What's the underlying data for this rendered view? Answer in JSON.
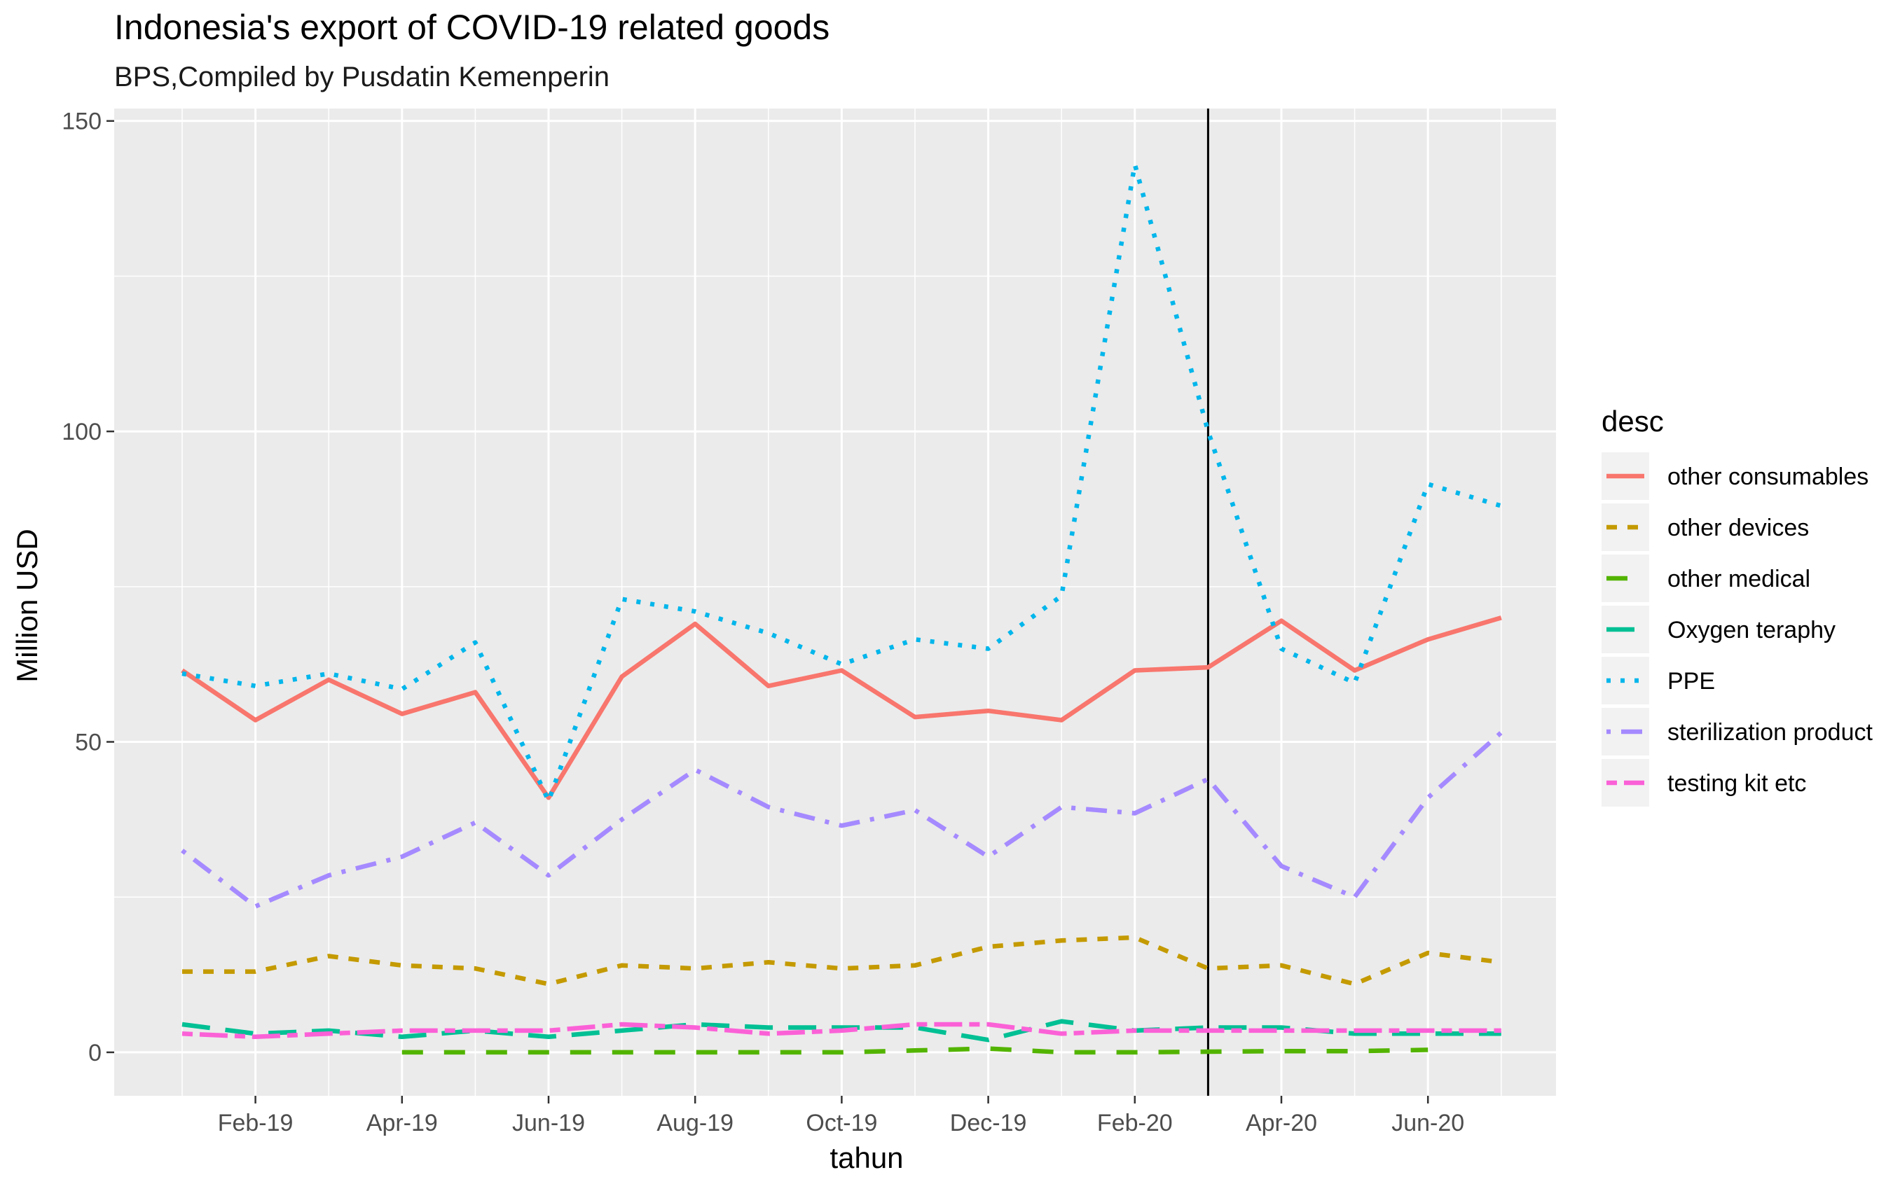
{
  "title": "Indonesia's export of COVID-19 related goods",
  "subtitle": "BPS,Compiled by Pusdatin Kemenperin",
  "chart_data": {
    "type": "line",
    "xlabel": "tahun",
    "ylabel": "Million USD",
    "ylim": [
      -7,
      152
    ],
    "yticks": [
      0,
      50,
      100,
      150
    ],
    "x": [
      "Jan-19",
      "Feb-19",
      "Mar-19",
      "Apr-19",
      "May-19",
      "Jun-19",
      "Jul-19",
      "Aug-19",
      "Sep-19",
      "Oct-19",
      "Nov-19",
      "Dec-19",
      "Jan-20",
      "Feb-20",
      "Mar-20",
      "Apr-20",
      "May-20",
      "Jun-20",
      "Jul-20"
    ],
    "xticks": [
      "Feb-19",
      "Apr-19",
      "Jun-19",
      "Aug-19",
      "Oct-19",
      "Dec-19",
      "Feb-20",
      "Apr-20",
      "Jun-20"
    ],
    "vline_at": "Mar-20",
    "grid": true,
    "legend_title": "desc",
    "legend_position": "right",
    "series": [
      {
        "name": "other consumables",
        "color": "#F8766D",
        "dash": "solid",
        "values": [
          61.5,
          53.5,
          60,
          54.5,
          58,
          41,
          60.5,
          69,
          59,
          61.5,
          54,
          55,
          53.5,
          61.5,
          62,
          69.5,
          61.5,
          66.5,
          70
        ]
      },
      {
        "name": "other devices",
        "color": "#C49A00",
        "dash": "short",
        "values": [
          13,
          13,
          15.5,
          14,
          13.5,
          11,
          14,
          13.5,
          14.5,
          13.5,
          14,
          17,
          18,
          18.5,
          13.5,
          14,
          11,
          16,
          14.5
        ]
      },
      {
        "name": "other medical",
        "color": "#53B400",
        "dash": "long",
        "values": [
          null,
          null,
          null,
          0,
          0,
          0,
          0,
          0,
          0,
          0,
          0.3,
          0.6,
          0,
          0,
          0.1,
          0.2,
          0.2,
          0.4,
          null
        ]
      },
      {
        "name": "Oxygen teraphy",
        "color": "#00C094",
        "dash": "longdash",
        "values": [
          4.5,
          3,
          3.5,
          2.5,
          3.5,
          2.5,
          3.5,
          4.5,
          4,
          4,
          4,
          2,
          5,
          3.5,
          4,
          4,
          3,
          3,
          3
        ]
      },
      {
        "name": "PPE",
        "color": "#00B6EB",
        "dash": "dotted",
        "values": [
          61,
          59,
          61,
          58.5,
          66,
          40.5,
          73,
          71,
          67.5,
          62.5,
          66.5,
          65,
          73.5,
          143,
          100,
          65,
          59.5,
          91.5,
          88
        ]
      },
      {
        "name": "sterilization product",
        "color": "#A58AFF",
        "dash": "dotdash",
        "values": [
          32.5,
          23.5,
          28.5,
          31.5,
          37,
          28.5,
          37.5,
          45.5,
          39.5,
          36.5,
          39,
          31.5,
          39.5,
          38.5,
          44,
          30,
          25,
          41,
          51.5
        ]
      },
      {
        "name": "testing kit etc",
        "color": "#FB61D7",
        "dash": "twodash",
        "values": [
          3,
          2.5,
          3,
          3.5,
          3.5,
          3.5,
          4.5,
          4,
          3,
          3.5,
          4.5,
          4.5,
          3,
          3.5,
          3.5,
          3.5,
          3.5,
          3.5,
          3.5
        ]
      }
    ]
  }
}
